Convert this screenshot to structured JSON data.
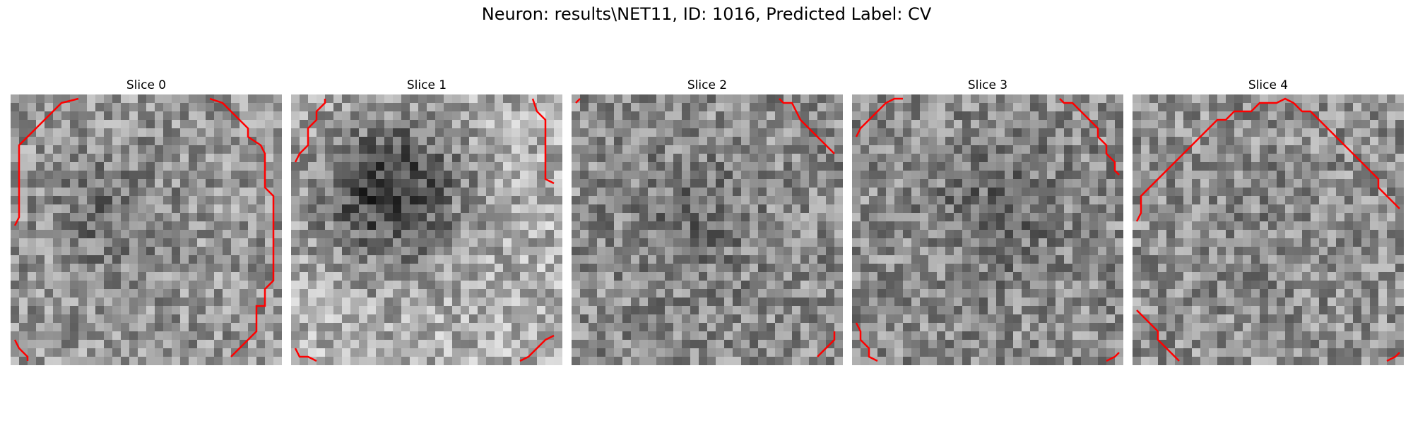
{
  "figure": {
    "title": "Neuron: results\\NET11, ID: 1016, Predicted Label: CV",
    "contour_color": "#ff0000"
  },
  "slices": [
    {
      "title": "Slice 0"
    },
    {
      "title": "Slice 1"
    },
    {
      "title": "Slice 2"
    },
    {
      "title": "Slice 3"
    },
    {
      "title": "Slice 4"
    }
  ]
}
